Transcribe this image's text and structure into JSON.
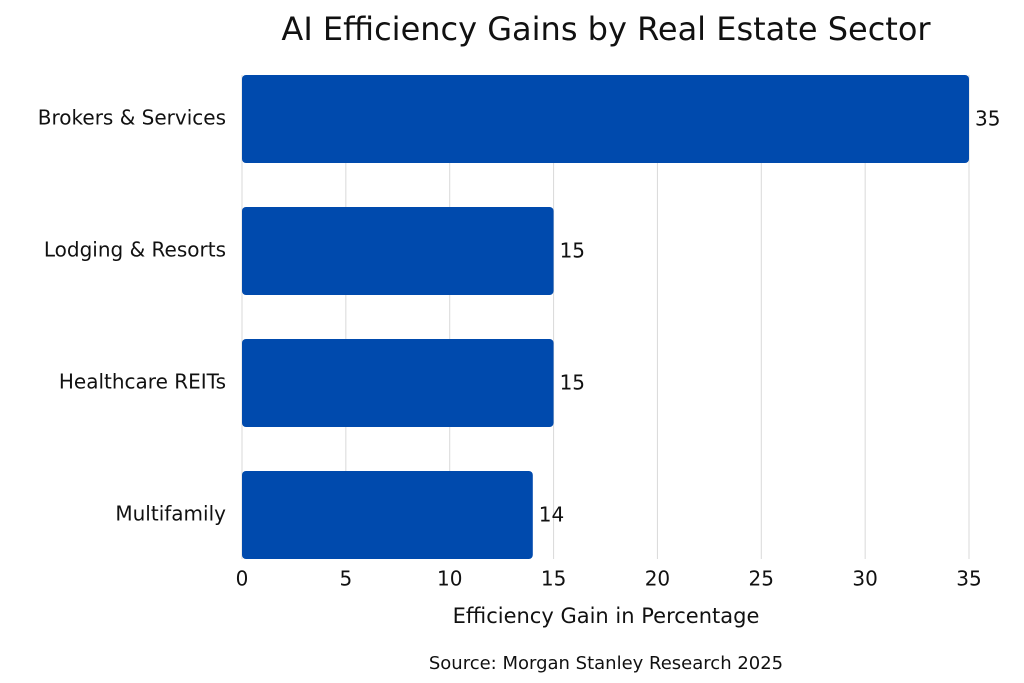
{
  "chart_data": {
    "type": "barh",
    "title": "AI Efficiency Gains by Real Estate Sector",
    "categories": [
      "Brokers & Services",
      "Lodging & Resorts",
      "Healthcare REITs",
      "Multifamily"
    ],
    "values": [
      35,
      15,
      15,
      14
    ],
    "color": "#004aad",
    "xlim": [
      0,
      35
    ],
    "xticks": [
      0,
      5,
      10,
      15,
      20,
      25,
      30,
      35
    ],
    "grid": true,
    "x_label": "Efficiency Gain in Percentage",
    "source": "Source: Morgan Stanley Research 2025"
  }
}
